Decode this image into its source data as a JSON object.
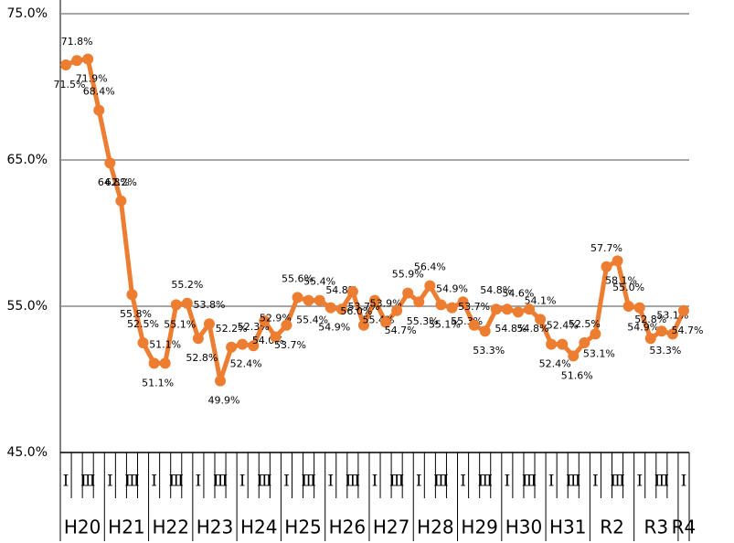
{
  "chart_data": {
    "type": "line",
    "categories": [
      "Ⅰ",
      null,
      "Ⅲ",
      null,
      "Ⅰ",
      null,
      "Ⅲ",
      null,
      "Ⅰ",
      null,
      "Ⅲ",
      null,
      "Ⅰ",
      null,
      "Ⅲ",
      null,
      "Ⅰ",
      null,
      "Ⅲ",
      null,
      "Ⅰ",
      null,
      "Ⅲ",
      null,
      "Ⅰ",
      null,
      "Ⅲ",
      null,
      "Ⅰ",
      null,
      "Ⅲ",
      null,
      "Ⅰ",
      null,
      "Ⅲ",
      null,
      "Ⅰ",
      null,
      "Ⅲ",
      null,
      "Ⅰ",
      null,
      "Ⅲ",
      null,
      "Ⅰ",
      null,
      "Ⅲ",
      null,
      "Ⅰ",
      null,
      "Ⅲ",
      null,
      "Ⅰ",
      null,
      "Ⅲ",
      null,
      "Ⅰ"
    ],
    "year_groups": [
      "H20",
      "H21",
      "H22",
      "H23",
      "H24",
      "H25",
      "H26",
      "H27",
      "H28",
      "H29",
      "H30",
      "H31",
      "R2",
      "R3",
      "R4"
    ],
    "series": [
      {
        "color": "#ED7D31",
        "values": [
          71.5,
          71.8,
          71.9,
          68.4,
          64.8,
          62.2,
          55.8,
          52.5,
          51.1,
          51.1,
          55.1,
          55.2,
          52.8,
          53.8,
          49.9,
          52.2,
          52.4,
          52.3,
          54.0,
          52.9,
          53.7,
          55.6,
          55.4,
          55.4,
          54.9,
          54.8,
          56.0,
          53.7,
          55.4,
          53.9,
          54.7,
          55.9,
          55.3,
          56.4,
          55.1,
          54.9,
          55.3,
          53.7,
          53.3,
          54.8,
          54.8,
          54.6,
          54.8,
          54.1,
          52.4,
          52.4,
          51.6,
          52.5,
          53.1,
          57.7,
          58.1,
          55.0,
          54.9,
          52.8,
          53.3,
          53.1,
          54.7
        ],
        "value_labels": [
          "71.5%",
          "71.8%",
          "71.9%",
          "68.4%",
          "64.8%",
          "62.2%",
          "55.8%",
          "52.5%",
          "51.1%",
          "51.1%",
          "55.1%",
          "55.2%",
          "52.8%",
          "53.8%",
          "49.9%",
          "52.2%",
          "52.4%",
          "52.3%",
          "54.0%",
          "52.9%",
          "53.7%",
          "55.6%",
          "55.4%",
          "55.4%",
          "54.9%",
          "54.8%",
          "56.0%",
          "53.7%",
          "55.4%",
          "53.9%",
          "54.7%",
          "55.9%",
          "55.3%",
          "56.4%",
          "55.1%",
          "54.9%",
          "55.3%",
          "53.7%",
          "53.3%",
          "54.8%",
          "54.8%",
          "54.6%",
          "54.8%",
          "54.1%",
          "52.4%",
          "52.4%",
          "51.6%",
          "52.5%",
          "53.1%",
          "57.7%",
          "58.1%",
          "55.0%",
          "54.9%",
          "52.8%",
          "53.3%",
          "53.1%",
          "54.7%"
        ]
      }
    ],
    "ylim": [
      45,
      75
    ],
    "yticks": [
      {
        "value": 45,
        "label": "45.0%"
      },
      {
        "value": 55,
        "label": "55.0%"
      },
      {
        "value": 65,
        "label": "65.0%"
      },
      {
        "value": 75,
        "label": "75.0%"
      }
    ],
    "grid": true
  }
}
